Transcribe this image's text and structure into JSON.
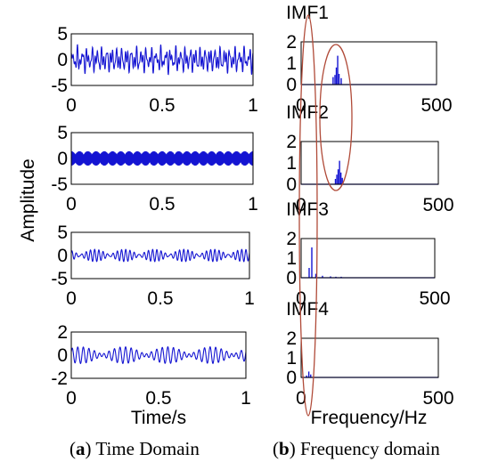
{
  "chart_data": [
    {
      "type": "line",
      "panel": "time",
      "name": "IMF1",
      "xlim": [
        0,
        1
      ],
      "ylim": [
        -5,
        5
      ],
      "xticks": [
        "0",
        "0.5",
        "1"
      ],
      "yticks": [
        "-5",
        "0",
        "5"
      ],
      "color": "#1414d2",
      "signal": {
        "amplitude": 2.6,
        "components_hz": [
          37,
          61,
          83
        ]
      }
    },
    {
      "type": "line",
      "panel": "time",
      "name": "IMF2",
      "xlim": [
        0,
        1
      ],
      "ylim": [
        -5,
        5
      ],
      "xticks": [
        "0",
        "0.5",
        "1"
      ],
      "yticks": [
        "-5",
        "0",
        "5"
      ],
      "color": "#1414d2",
      "signal": {
        "amplitude": 1.5,
        "carrier_hz": 150,
        "envelope_hz": 22
      }
    },
    {
      "type": "line",
      "panel": "time",
      "name": "IMF3",
      "xlim": [
        0,
        1
      ],
      "ylim": [
        -5,
        5
      ],
      "xticks": [
        "0",
        "0.5",
        "1"
      ],
      "yticks": [
        "-5",
        "0",
        "5"
      ],
      "color": "#1414d2",
      "signal": {
        "amplitude": 1.1,
        "components_hz": [
          40,
          46
        ]
      }
    },
    {
      "type": "line",
      "panel": "time",
      "name": "IMF4",
      "xlim": [
        0,
        1
      ],
      "ylim": [
        -2,
        2
      ],
      "xticks": [
        "0",
        "0.5",
        "1"
      ],
      "yticks": [
        "-2",
        "0",
        "2"
      ],
      "color": "#1414d2",
      "signal": {
        "amplitude": 0.6,
        "components_hz": [
          33,
          29
        ]
      }
    },
    {
      "type": "bar",
      "panel": "frequency",
      "title": "IMF1",
      "xlim": [
        0,
        500
      ],
      "ylim": [
        0,
        2
      ],
      "xticks": [
        "0",
        "500"
      ],
      "yticks": [
        "0",
        "1",
        "2"
      ],
      "color": "#1414d2",
      "peaks": [
        [
          118,
          0.35
        ],
        [
          125,
          0.45
        ],
        [
          130,
          0.8
        ],
        [
          135,
          1.35
        ],
        [
          140,
          0.5
        ],
        [
          148,
          0.3
        ]
      ]
    },
    {
      "type": "bar",
      "panel": "frequency",
      "title": "IMF2",
      "xlim": [
        0,
        500
      ],
      "ylim": [
        0,
        2
      ],
      "xticks": [
        "0",
        "500"
      ],
      "yticks": [
        "0",
        "1",
        "2"
      ],
      "color": "#1414d2",
      "peaks": [
        [
          125,
          0.25
        ],
        [
          130,
          0.45
        ],
        [
          135,
          0.7
        ],
        [
          140,
          1.1
        ],
        [
          145,
          0.55
        ],
        [
          150,
          0.3
        ]
      ]
    },
    {
      "type": "bar",
      "panel": "frequency",
      "title": "IMF3",
      "xlim": [
        0,
        500
      ],
      "ylim": [
        0,
        2
      ],
      "xticks": [
        "0",
        "500"
      ],
      "yticks": [
        "0",
        "1",
        "2"
      ],
      "color": "#1414d2",
      "peaks": [
        [
          30,
          0.5
        ],
        [
          40,
          1.55
        ],
        [
          55,
          0.2
        ],
        [
          80,
          0.1
        ],
        [
          110,
          0.07
        ],
        [
          130,
          0.05
        ],
        [
          150,
          0.05
        ]
      ]
    },
    {
      "type": "bar",
      "panel": "frequency",
      "title": "IMF4",
      "xlim": [
        0,
        500
      ],
      "ylim": [
        0,
        2
      ],
      "xticks": [
        "0",
        "500"
      ],
      "yticks": [
        "0",
        "1",
        "2"
      ],
      "color": "#1414d2",
      "peaks": [
        [
          20,
          0.1
        ],
        [
          28,
          0.3
        ],
        [
          35,
          0.15
        ]
      ]
    }
  ],
  "axes": {
    "amplitude_label": "Amplitude",
    "time_label": "Time/s",
    "frequency_label": "Frequency/Hz"
  },
  "captions": {
    "a_letter": "a",
    "a_text": " Time Domain",
    "b_letter": "b",
    "b_text": " Frequency domain"
  },
  "highlight_color": "#b04a38"
}
